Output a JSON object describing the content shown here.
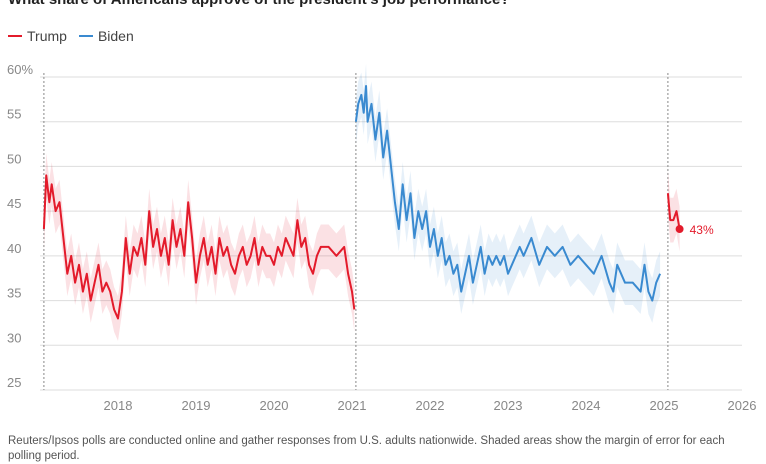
{
  "title": "What share of Americans approve of the president’s job performance?",
  "legend": {
    "items": [
      {
        "label": "Trump",
        "color": "#e31b2b"
      },
      {
        "label": "Biden",
        "color": "#3a8ad0"
      }
    ]
  },
  "note": "Reuters/Ipsos polls are conducted online and gather responses from U.S. adults nationwide. Shaded areas show the margin of error for each polling period.",
  "chart_data": {
    "type": "line",
    "title": "What share of Americans approve of the president’s job performance?",
    "xlabel": "",
    "ylabel": "",
    "xlim": [
      2017.0,
      2026.0
    ],
    "ylim": [
      25,
      60
    ],
    "x_ticks": [
      2018,
      2019,
      2020,
      2021,
      2022,
      2023,
      2024,
      2025,
      2026
    ],
    "y_ticks": [
      25,
      30,
      35,
      40,
      45,
      50,
      55,
      60
    ],
    "y_tick_labels": [
      "25",
      "30",
      "35",
      "40",
      "45",
      "50",
      "55",
      "60%"
    ],
    "grid": true,
    "legend_position": "top-left",
    "term_markers": [
      2017.05,
      2021.05,
      2025.05
    ],
    "margin_of_error": 2.5,
    "annotations": [
      {
        "series": "Trump",
        "x": 2025.2,
        "y": 43,
        "text": "43%"
      }
    ],
    "series": [
      {
        "name": "Trump",
        "color": "#e31b2b",
        "segments": [
          {
            "x": [
              2017.05,
              2017.08,
              2017.12,
              2017.15,
              2017.2,
              2017.25,
              2017.3,
              2017.35,
              2017.4,
              2017.45,
              2017.5,
              2017.55,
              2017.6,
              2017.65,
              2017.7,
              2017.75,
              2017.8,
              2017.85,
              2017.9,
              2017.95,
              2018.0,
              2018.05,
              2018.1,
              2018.15,
              2018.2,
              2018.25,
              2018.3,
              2018.35,
              2018.4,
              2018.45,
              2018.5,
              2018.55,
              2018.6,
              2018.65,
              2018.7,
              2018.75,
              2018.8,
              2018.85,
              2018.9,
              2018.95,
              2019.0,
              2019.05,
              2019.1,
              2019.15,
              2019.2,
              2019.25,
              2019.3,
              2019.35,
              2019.4,
              2019.45,
              2019.5,
              2019.55,
              2019.6,
              2019.65,
              2019.7,
              2019.75,
              2019.8,
              2019.85,
              2019.9,
              2019.95,
              2020.0,
              2020.05,
              2020.1,
              2020.15,
              2020.2,
              2020.25,
              2020.3,
              2020.35,
              2020.4,
              2020.45,
              2020.5,
              2020.55,
              2020.6,
              2020.7,
              2020.8,
              2020.9,
              2020.95,
              2021.0,
              2021.03
            ],
            "y": [
              43,
              49,
              46,
              48,
              45,
              46,
              42,
              38,
              40,
              37,
              39,
              36,
              38,
              35,
              37,
              39,
              36,
              37,
              36,
              34,
              33,
              36,
              42,
              38,
              41,
              40,
              42,
              39,
              45,
              41,
              43,
              40,
              42,
              39,
              44,
              41,
              43,
              40,
              46,
              42,
              37,
              40,
              42,
              39,
              41,
              38,
              42,
              40,
              41,
              39,
              38,
              40,
              41,
              39,
              40,
              42,
              39,
              41,
              40,
              40,
              39,
              41,
              40,
              42,
              41,
              40,
              44,
              41,
              42,
              39,
              38,
              40,
              41,
              41,
              40,
              41,
              38,
              36,
              34
            ]
          },
          {
            "x": [
              2025.05,
              2025.08,
              2025.12,
              2025.16,
              2025.2
            ],
            "y": [
              47,
              44,
              44,
              45,
              43
            ]
          }
        ]
      },
      {
        "name": "Biden",
        "color": "#3a8ad0",
        "segments": [
          {
            "x": [
              2021.05,
              2021.08,
              2021.12,
              2021.15,
              2021.18,
              2021.2,
              2021.25,
              2021.3,
              2021.35,
              2021.4,
              2021.45,
              2021.5,
              2021.55,
              2021.6,
              2021.65,
              2021.7,
              2021.75,
              2021.8,
              2021.85,
              2021.9,
              2021.95,
              2022.0,
              2022.05,
              2022.1,
              2022.15,
              2022.2,
              2022.25,
              2022.3,
              2022.35,
              2022.4,
              2022.45,
              2022.5,
              2022.55,
              2022.6,
              2022.65,
              2022.7,
              2022.75,
              2022.8,
              2022.85,
              2022.9,
              2022.95,
              2023.0,
              2023.05,
              2023.1,
              2023.15,
              2023.2,
              2023.3,
              2023.4,
              2023.5,
              2023.6,
              2023.7,
              2023.8,
              2023.9,
              2024.0,
              2024.1,
              2024.2,
              2024.3,
              2024.35,
              2024.4,
              2024.5,
              2024.6,
              2024.7,
              2024.75,
              2024.8,
              2024.85,
              2024.9,
              2024.95
            ],
            "y": [
              55,
              57,
              58,
              56,
              59,
              55,
              57,
              53,
              56,
              51,
              54,
              50,
              46,
              43,
              48,
              44,
              47,
              42,
              45,
              43,
              45,
              41,
              43,
              40,
              42,
              39,
              40,
              38,
              39,
              36,
              38,
              40,
              37,
              39,
              41,
              38,
              40,
              39,
              40,
              39,
              40,
              38,
              39,
              40,
              41,
              40,
              42,
              39,
              41,
              40,
              41,
              39,
              40,
              39,
              38,
              40,
              37,
              36,
              39,
              37,
              37,
              36,
              39,
              36,
              35,
              37,
              38
            ]
          }
        ]
      }
    ]
  }
}
